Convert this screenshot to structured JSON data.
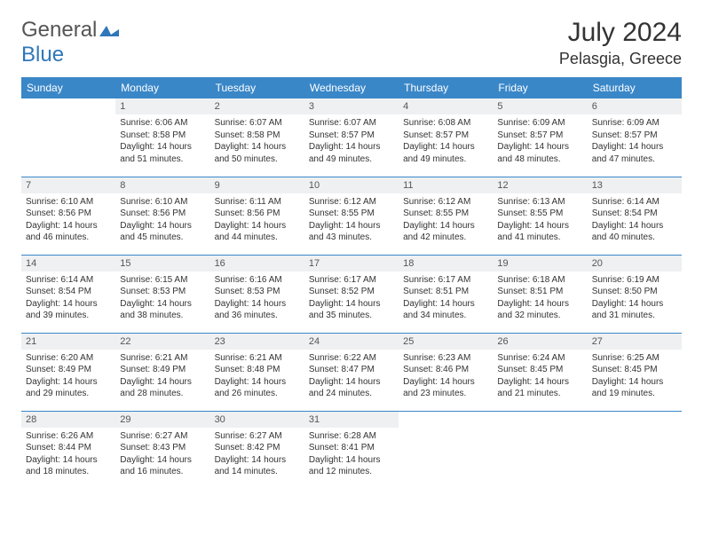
{
  "logo": {
    "part1": "General",
    "part2": "Blue"
  },
  "title": "July 2024",
  "location": "Pelasgia, Greece",
  "colors": {
    "header_bg": "#3a87c8",
    "header_text": "#ffffff",
    "daynum_bg": "#eef0f2",
    "row_border": "#3a87c8",
    "body_text": "#333333",
    "logo_gray": "#555555",
    "logo_blue": "#2f77b9"
  },
  "days_of_week": [
    "Sunday",
    "Monday",
    "Tuesday",
    "Wednesday",
    "Thursday",
    "Friday",
    "Saturday"
  ],
  "weeks": [
    [
      null,
      {
        "n": "1",
        "sr": "Sunrise: 6:06 AM",
        "ss": "Sunset: 8:58 PM",
        "d1": "Daylight: 14 hours",
        "d2": "and 51 minutes."
      },
      {
        "n": "2",
        "sr": "Sunrise: 6:07 AM",
        "ss": "Sunset: 8:58 PM",
        "d1": "Daylight: 14 hours",
        "d2": "and 50 minutes."
      },
      {
        "n": "3",
        "sr": "Sunrise: 6:07 AM",
        "ss": "Sunset: 8:57 PM",
        "d1": "Daylight: 14 hours",
        "d2": "and 49 minutes."
      },
      {
        "n": "4",
        "sr": "Sunrise: 6:08 AM",
        "ss": "Sunset: 8:57 PM",
        "d1": "Daylight: 14 hours",
        "d2": "and 49 minutes."
      },
      {
        "n": "5",
        "sr": "Sunrise: 6:09 AM",
        "ss": "Sunset: 8:57 PM",
        "d1": "Daylight: 14 hours",
        "d2": "and 48 minutes."
      },
      {
        "n": "6",
        "sr": "Sunrise: 6:09 AM",
        "ss": "Sunset: 8:57 PM",
        "d1": "Daylight: 14 hours",
        "d2": "and 47 minutes."
      }
    ],
    [
      {
        "n": "7",
        "sr": "Sunrise: 6:10 AM",
        "ss": "Sunset: 8:56 PM",
        "d1": "Daylight: 14 hours",
        "d2": "and 46 minutes."
      },
      {
        "n": "8",
        "sr": "Sunrise: 6:10 AM",
        "ss": "Sunset: 8:56 PM",
        "d1": "Daylight: 14 hours",
        "d2": "and 45 minutes."
      },
      {
        "n": "9",
        "sr": "Sunrise: 6:11 AM",
        "ss": "Sunset: 8:56 PM",
        "d1": "Daylight: 14 hours",
        "d2": "and 44 minutes."
      },
      {
        "n": "10",
        "sr": "Sunrise: 6:12 AM",
        "ss": "Sunset: 8:55 PM",
        "d1": "Daylight: 14 hours",
        "d2": "and 43 minutes."
      },
      {
        "n": "11",
        "sr": "Sunrise: 6:12 AM",
        "ss": "Sunset: 8:55 PM",
        "d1": "Daylight: 14 hours",
        "d2": "and 42 minutes."
      },
      {
        "n": "12",
        "sr": "Sunrise: 6:13 AM",
        "ss": "Sunset: 8:55 PM",
        "d1": "Daylight: 14 hours",
        "d2": "and 41 minutes."
      },
      {
        "n": "13",
        "sr": "Sunrise: 6:14 AM",
        "ss": "Sunset: 8:54 PM",
        "d1": "Daylight: 14 hours",
        "d2": "and 40 minutes."
      }
    ],
    [
      {
        "n": "14",
        "sr": "Sunrise: 6:14 AM",
        "ss": "Sunset: 8:54 PM",
        "d1": "Daylight: 14 hours",
        "d2": "and 39 minutes."
      },
      {
        "n": "15",
        "sr": "Sunrise: 6:15 AM",
        "ss": "Sunset: 8:53 PM",
        "d1": "Daylight: 14 hours",
        "d2": "and 38 minutes."
      },
      {
        "n": "16",
        "sr": "Sunrise: 6:16 AM",
        "ss": "Sunset: 8:53 PM",
        "d1": "Daylight: 14 hours",
        "d2": "and 36 minutes."
      },
      {
        "n": "17",
        "sr": "Sunrise: 6:17 AM",
        "ss": "Sunset: 8:52 PM",
        "d1": "Daylight: 14 hours",
        "d2": "and 35 minutes."
      },
      {
        "n": "18",
        "sr": "Sunrise: 6:17 AM",
        "ss": "Sunset: 8:51 PM",
        "d1": "Daylight: 14 hours",
        "d2": "and 34 minutes."
      },
      {
        "n": "19",
        "sr": "Sunrise: 6:18 AM",
        "ss": "Sunset: 8:51 PM",
        "d1": "Daylight: 14 hours",
        "d2": "and 32 minutes."
      },
      {
        "n": "20",
        "sr": "Sunrise: 6:19 AM",
        "ss": "Sunset: 8:50 PM",
        "d1": "Daylight: 14 hours",
        "d2": "and 31 minutes."
      }
    ],
    [
      {
        "n": "21",
        "sr": "Sunrise: 6:20 AM",
        "ss": "Sunset: 8:49 PM",
        "d1": "Daylight: 14 hours",
        "d2": "and 29 minutes."
      },
      {
        "n": "22",
        "sr": "Sunrise: 6:21 AM",
        "ss": "Sunset: 8:49 PM",
        "d1": "Daylight: 14 hours",
        "d2": "and 28 minutes."
      },
      {
        "n": "23",
        "sr": "Sunrise: 6:21 AM",
        "ss": "Sunset: 8:48 PM",
        "d1": "Daylight: 14 hours",
        "d2": "and 26 minutes."
      },
      {
        "n": "24",
        "sr": "Sunrise: 6:22 AM",
        "ss": "Sunset: 8:47 PM",
        "d1": "Daylight: 14 hours",
        "d2": "and 24 minutes."
      },
      {
        "n": "25",
        "sr": "Sunrise: 6:23 AM",
        "ss": "Sunset: 8:46 PM",
        "d1": "Daylight: 14 hours",
        "d2": "and 23 minutes."
      },
      {
        "n": "26",
        "sr": "Sunrise: 6:24 AM",
        "ss": "Sunset: 8:45 PM",
        "d1": "Daylight: 14 hours",
        "d2": "and 21 minutes."
      },
      {
        "n": "27",
        "sr": "Sunrise: 6:25 AM",
        "ss": "Sunset: 8:45 PM",
        "d1": "Daylight: 14 hours",
        "d2": "and 19 minutes."
      }
    ],
    [
      {
        "n": "28",
        "sr": "Sunrise: 6:26 AM",
        "ss": "Sunset: 8:44 PM",
        "d1": "Daylight: 14 hours",
        "d2": "and 18 minutes."
      },
      {
        "n": "29",
        "sr": "Sunrise: 6:27 AM",
        "ss": "Sunset: 8:43 PM",
        "d1": "Daylight: 14 hours",
        "d2": "and 16 minutes."
      },
      {
        "n": "30",
        "sr": "Sunrise: 6:27 AM",
        "ss": "Sunset: 8:42 PM",
        "d1": "Daylight: 14 hours",
        "d2": "and 14 minutes."
      },
      {
        "n": "31",
        "sr": "Sunrise: 6:28 AM",
        "ss": "Sunset: 8:41 PM",
        "d1": "Daylight: 14 hours",
        "d2": "and 12 minutes."
      },
      null,
      null,
      null
    ]
  ]
}
